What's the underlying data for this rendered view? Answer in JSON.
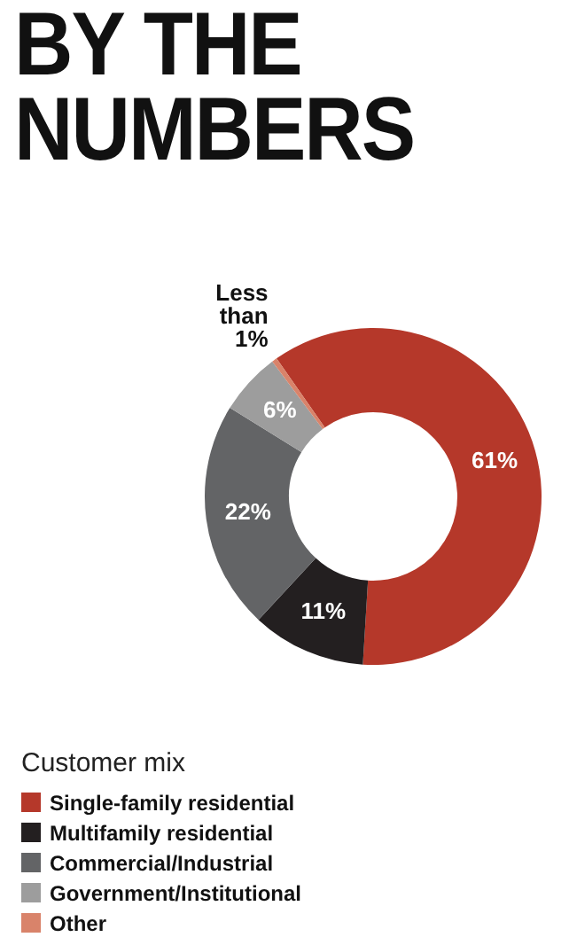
{
  "chart_data": {
    "type": "donut",
    "title": "BY THE NUMBERS",
    "legend_title": "Customer mix",
    "legend": "bottom left",
    "categories": [
      "Single-family residential",
      "Multifamily residential",
      "Commercial/Industrial",
      "Government/Institutional",
      "Other"
    ],
    "values": [
      61,
      11,
      22,
      6,
      0.5
    ],
    "colors": [
      "#b5382a",
      "#231f20",
      "#636466",
      "#9d9d9d",
      "#d9836a"
    ],
    "value_labels": [
      "61%",
      "11%",
      "22%",
      "6%",
      "Less than 1%"
    ]
  }
}
